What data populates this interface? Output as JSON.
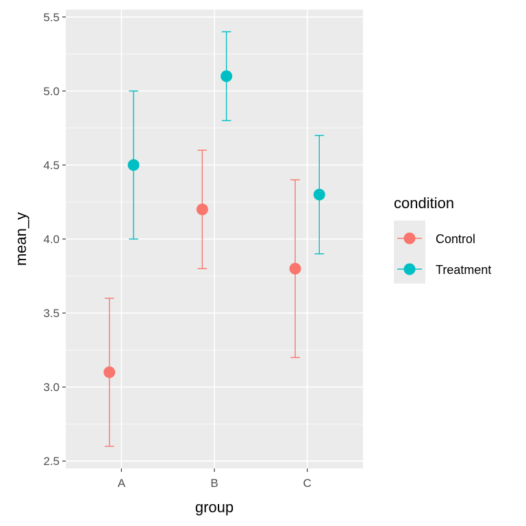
{
  "chart_data": {
    "type": "scatter",
    "subtype": "point-range with error bars",
    "x_categories": [
      "A",
      "B",
      "C"
    ],
    "xlabel": "group",
    "ylabel": "mean_y",
    "ylim": [
      2.45,
      5.55
    ],
    "y_ticks": [
      2.5,
      3.0,
      3.5,
      4.0,
      4.5,
      5.0,
      5.5
    ],
    "y_tick_labels": [
      "2.5",
      "3.0",
      "3.5",
      "4.0",
      "4.5",
      "5.0",
      "5.5"
    ],
    "grid": true,
    "legend": {
      "title": "condition",
      "placement": "right"
    },
    "series": [
      {
        "name": "Control",
        "color": "#F8766D",
        "points": [
          {
            "x": "A",
            "y": 3.1,
            "ymin": 2.6,
            "ymax": 3.6
          },
          {
            "x": "B",
            "y": 4.2,
            "ymin": 3.8,
            "ymax": 4.6
          },
          {
            "x": "C",
            "y": 3.8,
            "ymin": 3.2,
            "ymax": 4.4
          }
        ]
      },
      {
        "name": "Treatment",
        "color": "#00BFC4",
        "points": [
          {
            "x": "A",
            "y": 4.5,
            "ymin": 4.0,
            "ymax": 5.0
          },
          {
            "x": "B",
            "y": 5.1,
            "ymin": 4.8,
            "ymax": 5.4
          },
          {
            "x": "C",
            "y": 4.3,
            "ymin": 3.9,
            "ymax": 4.7
          }
        ]
      }
    ]
  }
}
